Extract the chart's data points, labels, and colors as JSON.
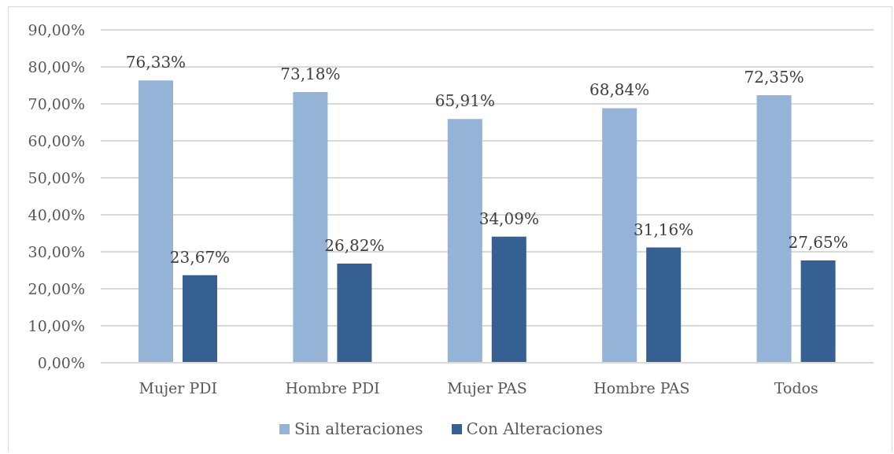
{
  "chart_data": {
    "type": "bar",
    "categories": [
      "Mujer PDI",
      "Hombre PDI",
      "Mujer PAS",
      "Hombre PAS",
      "Todos"
    ],
    "series": [
      {
        "name": "Sin alteraciones",
        "color": "#95b3d7",
        "values": [
          76.33,
          73.18,
          65.91,
          68.84,
          72.35
        ],
        "value_labels": [
          "76,33%",
          "73,18%",
          "65,91%",
          "68,84%",
          "72,35%"
        ]
      },
      {
        "name": "Con Alteraciones",
        "color": "#366092",
        "values": [
          23.67,
          26.82,
          34.09,
          31.16,
          27.65
        ],
        "value_labels": [
          "23,67%",
          "26,82%",
          "34,09%",
          "31,16%",
          "27,65%"
        ]
      }
    ],
    "ylim": [
      0,
      90
    ],
    "yticks": [
      {
        "value": 0,
        "label": "0,00%"
      },
      {
        "value": 10,
        "label": "10,00%"
      },
      {
        "value": 20,
        "label": "20,00%"
      },
      {
        "value": 30,
        "label": "30,00%"
      },
      {
        "value": 40,
        "label": "40,00%"
      },
      {
        "value": 50,
        "label": "50,00%"
      },
      {
        "value": 60,
        "label": "60,00%"
      },
      {
        "value": 70,
        "label": "70,00%"
      },
      {
        "value": 80,
        "label": "80,00%"
      },
      {
        "value": 90,
        "label": "90,00%"
      }
    ],
    "grid": "y",
    "legend": "bottom"
  }
}
